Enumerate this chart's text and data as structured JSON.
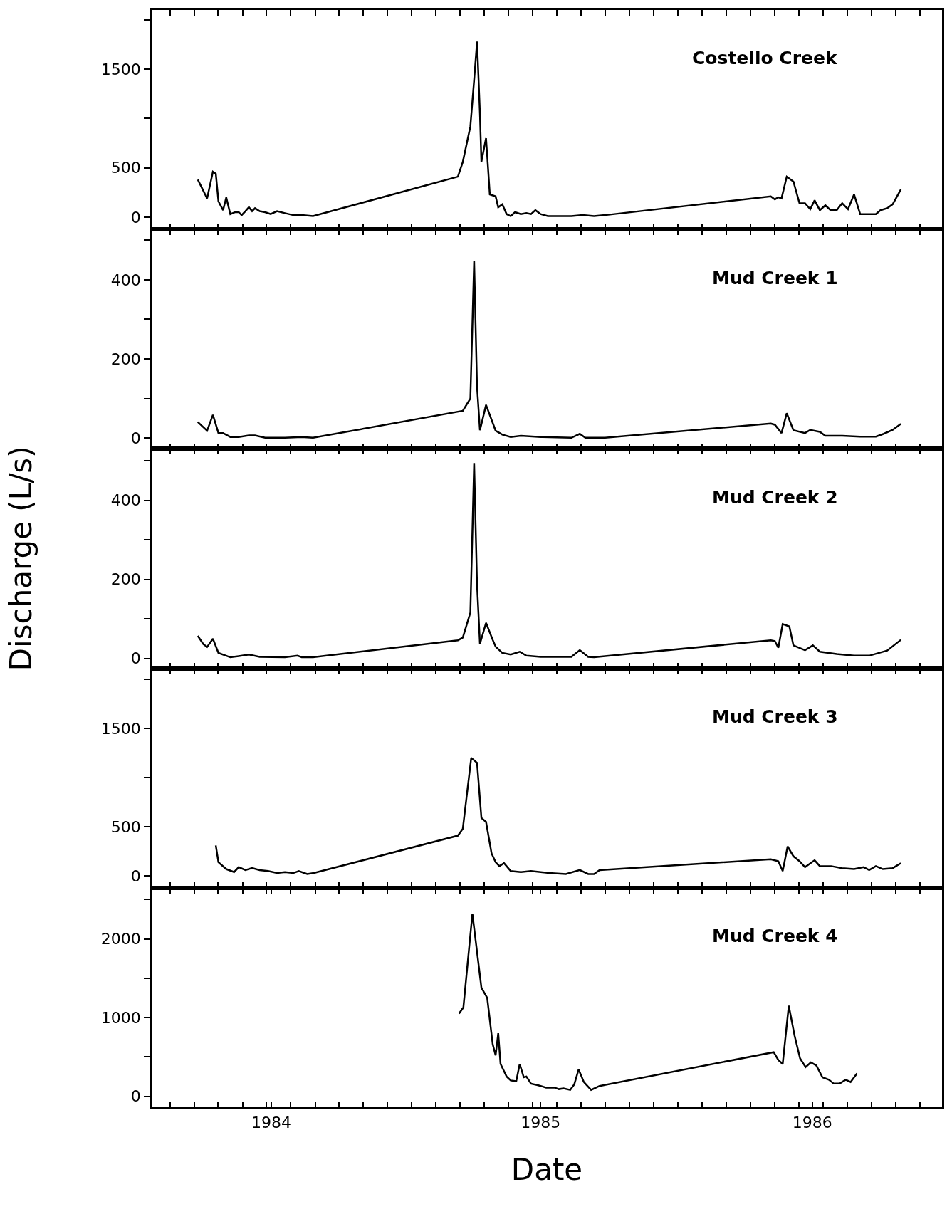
{
  "chart_data": [
    {
      "type": "line",
      "annotations": [
        "Costello Creek"
      ],
      "tick_labels": "y",
      "xlim": [
        1983.854,
        1986.577
      ],
      "ylim": [
        -125,
        2100
      ],
      "xticks": [
        {
          "value": 1983.917,
          "label": null
        },
        {
          "value": 1984.0,
          "label": null
        },
        {
          "value": 1984.083,
          "label": null
        },
        {
          "value": 1984.167,
          "label": null
        },
        {
          "value": 1984.25,
          "label": null
        },
        {
          "value": 1984.333,
          "label": null
        },
        {
          "value": 1984.417,
          "label": null
        },
        {
          "value": 1984.5,
          "label": null
        },
        {
          "value": 1984.583,
          "label": null
        },
        {
          "value": 1984.667,
          "label": null
        },
        {
          "value": 1984.75,
          "label": null
        },
        {
          "value": 1984.833,
          "label": null
        },
        {
          "value": 1984.917,
          "label": null
        },
        {
          "value": 1985.0,
          "label": null
        },
        {
          "value": 1985.083,
          "label": null
        },
        {
          "value": 1985.167,
          "label": null
        },
        {
          "value": 1985.25,
          "label": null
        },
        {
          "value": 1985.333,
          "label": null
        },
        {
          "value": 1985.417,
          "label": null
        },
        {
          "value": 1985.5,
          "label": null
        },
        {
          "value": 1985.583,
          "label": null
        },
        {
          "value": 1985.667,
          "label": null
        },
        {
          "value": 1985.75,
          "label": null
        },
        {
          "value": 1985.833,
          "label": null
        },
        {
          "value": 1985.917,
          "label": null
        },
        {
          "value": 1986.0,
          "label": null
        },
        {
          "value": 1986.083,
          "label": null
        },
        {
          "value": 1986.167,
          "label": null
        },
        {
          "value": 1986.25,
          "label": null
        },
        {
          "value": 1986.333,
          "label": null
        },
        {
          "value": 1986.417,
          "label": null
        },
        {
          "value": 1986.5,
          "label": null
        }
      ],
      "yticks": [
        0,
        500,
        {
          "value": 1000,
          "label": null
        },
        1500,
        {
          "value": 2000,
          "label": null
        }
      ],
      "series": [
        {
          "color": "#000000",
          "x": [
            1984.013,
            1984.045,
            1984.065,
            1984.075,
            1984.084,
            1984.1,
            1984.111,
            1984.125,
            1984.142,
            1984.154,
            1984.164,
            1984.177,
            1984.189,
            1984.2,
            1984.21,
            1984.226,
            1984.245,
            1984.264,
            1984.286,
            1984.313,
            1984.342,
            1984.371,
            1984.41,
            1984.909,
            1984.926,
            1984.952,
            1984.965,
            1984.975,
            1984.985,
            1984.99,
            1985.006,
            1985.019,
            1985.039,
            1985.048,
            1985.062,
            1985.077,
            1985.091,
            1985.106,
            1985.126,
            1985.145,
            1985.161,
            1985.176,
            1985.194,
            1985.219,
            1985.261,
            1985.3,
            1985.339,
            1985.378,
            1985.416,
            1985.987,
            1986.001,
            1986.013,
            1986.024,
            1986.042,
            1986.065,
            1986.086,
            1986.105,
            1986.123,
            1986.138,
            1986.156,
            1986.175,
            1986.193,
            1986.214,
            1986.233,
            1986.253,
            1986.274,
            1986.295,
            1986.326,
            1986.349,
            1986.365,
            1986.388,
            1986.407,
            1986.435
          ],
          "values": [
            380,
            190,
            460,
            440,
            160,
            70,
            200,
            30,
            50,
            50,
            20,
            60,
            100,
            60,
            90,
            60,
            50,
            30,
            60,
            40,
            20,
            20,
            10,
            410,
            560,
            920,
            1390,
            1780,
            1050,
            560,
            800,
            230,
            210,
            100,
            130,
            30,
            10,
            50,
            30,
            40,
            30,
            70,
            30,
            10,
            10,
            10,
            20,
            10,
            20,
            210,
            180,
            200,
            190,
            410,
            360,
            140,
            140,
            80,
            170,
            70,
            120,
            70,
            70,
            140,
            80,
            230,
            30,
            30,
            30,
            70,
            90,
            130,
            280
          ]
        }
      ]
    },
    {
      "type": "line",
      "annotations": [
        "Mud Creek 1"
      ],
      "tick_labels": "y",
      "xlim": [
        1983.854,
        1986.577
      ],
      "ylim": [
        -27,
        527
      ],
      "xticks": [
        {
          "value": 1983.917,
          "label": null
        },
        {
          "value": 1984.0,
          "label": null
        },
        {
          "value": 1984.083,
          "label": null
        },
        {
          "value": 1984.167,
          "label": null
        },
        {
          "value": 1984.25,
          "label": null
        },
        {
          "value": 1984.333,
          "label": null
        },
        {
          "value": 1984.417,
          "label": null
        },
        {
          "value": 1984.5,
          "label": null
        },
        {
          "value": 1984.583,
          "label": null
        },
        {
          "value": 1984.667,
          "label": null
        },
        {
          "value": 1984.75,
          "label": null
        },
        {
          "value": 1984.833,
          "label": null
        },
        {
          "value": 1984.917,
          "label": null
        },
        {
          "value": 1985.0,
          "label": null
        },
        {
          "value": 1985.083,
          "label": null
        },
        {
          "value": 1985.167,
          "label": null
        },
        {
          "value": 1985.25,
          "label": null
        },
        {
          "value": 1985.333,
          "label": null
        },
        {
          "value": 1985.417,
          "label": null
        },
        {
          "value": 1985.5,
          "label": null
        },
        {
          "value": 1985.583,
          "label": null
        },
        {
          "value": 1985.667,
          "label": null
        },
        {
          "value": 1985.75,
          "label": null
        },
        {
          "value": 1985.833,
          "label": null
        },
        {
          "value": 1985.917,
          "label": null
        },
        {
          "value": 1986.0,
          "label": null
        },
        {
          "value": 1986.083,
          "label": null
        },
        {
          "value": 1986.167,
          "label": null
        },
        {
          "value": 1986.25,
          "label": null
        },
        {
          "value": 1986.333,
          "label": null
        },
        {
          "value": 1986.417,
          "label": null
        },
        {
          "value": 1986.5,
          "label": null
        }
      ],
      "yticks": [
        0,
        {
          "value": 100,
          "label": null
        },
        200,
        {
          "value": 300,
          "label": null
        },
        400,
        {
          "value": 500,
          "label": null
        }
      ],
      "series": [
        {
          "color": "#000000",
          "x": [
            1984.013,
            1984.045,
            1984.065,
            1984.084,
            1984.1,
            1984.125,
            1984.154,
            1984.189,
            1984.21,
            1984.245,
            1984.313,
            1984.371,
            1984.41,
            1984.926,
            1984.952,
            1984.965,
            1984.975,
            1984.985,
            1985.006,
            1985.039,
            1985.062,
            1985.091,
            1985.126,
            1985.194,
            1985.3,
            1985.329,
            1985.348,
            1985.416,
            1985.987,
            1986.001,
            1986.024,
            1986.042,
            1986.065,
            1986.105,
            1986.123,
            1986.156,
            1986.175,
            1986.233,
            1986.295,
            1986.349,
            1986.376,
            1986.407,
            1986.435
          ],
          "values": [
            41,
            19,
            59,
            13,
            13,
            3,
            3,
            7,
            7,
            1,
            1,
            3,
            1,
            69,
            100,
            447,
            130,
            20,
            84,
            19,
            9,
            3,
            6,
            3,
            1,
            11,
            1,
            1,
            37,
            34,
            13,
            63,
            20,
            13,
            21,
            16,
            6,
            6,
            4,
            4,
            11,
            21,
            36
          ]
        }
      ]
    },
    {
      "type": "line",
      "annotations": [
        "Mud Creek 2"
      ],
      "ylabel": "Discharge (L/s)",
      "tick_labels": "y",
      "xlim": [
        1983.854,
        1986.577
      ],
      "ylim": [
        -25,
        530
      ],
      "xticks": [
        {
          "value": 1983.917,
          "label": null
        },
        {
          "value": 1984.0,
          "label": null
        },
        {
          "value": 1984.083,
          "label": null
        },
        {
          "value": 1984.167,
          "label": null
        },
        {
          "value": 1984.25,
          "label": null
        },
        {
          "value": 1984.333,
          "label": null
        },
        {
          "value": 1984.417,
          "label": null
        },
        {
          "value": 1984.5,
          "label": null
        },
        {
          "value": 1984.583,
          "label": null
        },
        {
          "value": 1984.667,
          "label": null
        },
        {
          "value": 1984.75,
          "label": null
        },
        {
          "value": 1984.833,
          "label": null
        },
        {
          "value": 1984.917,
          "label": null
        },
        {
          "value": 1985.0,
          "label": null
        },
        {
          "value": 1985.083,
          "label": null
        },
        {
          "value": 1985.167,
          "label": null
        },
        {
          "value": 1985.25,
          "label": null
        },
        {
          "value": 1985.333,
          "label": null
        },
        {
          "value": 1985.417,
          "label": null
        },
        {
          "value": 1985.5,
          "label": null
        },
        {
          "value": 1985.583,
          "label": null
        },
        {
          "value": 1985.667,
          "label": null
        },
        {
          "value": 1985.75,
          "label": null
        },
        {
          "value": 1985.833,
          "label": null
        },
        {
          "value": 1985.917,
          "label": null
        },
        {
          "value": 1986.0,
          "label": null
        },
        {
          "value": 1986.083,
          "label": null
        },
        {
          "value": 1986.167,
          "label": null
        },
        {
          "value": 1986.25,
          "label": null
        },
        {
          "value": 1986.333,
          "label": null
        },
        {
          "value": 1986.417,
          "label": null
        },
        {
          "value": 1986.5,
          "label": null
        }
      ],
      "yticks": [
        0,
        {
          "value": 100,
          "label": null
        },
        200,
        {
          "value": 300,
          "label": null
        },
        400,
        {
          "value": 500,
          "label": null
        }
      ],
      "series": [
        {
          "color": "#000000",
          "x": [
            1984.013,
            1984.032,
            1984.045,
            1984.065,
            1984.084,
            1984.125,
            1984.154,
            1984.189,
            1984.226,
            1984.313,
            1984.357,
            1984.371,
            1984.41,
            1984.909,
            1984.926,
            1984.952,
            1984.965,
            1984.975,
            1984.985,
            1985.006,
            1985.029,
            1985.039,
            1985.062,
            1985.091,
            1985.122,
            1985.145,
            1985.194,
            1985.261,
            1985.3,
            1985.329,
            1985.358,
            1985.378,
            1985.987,
            1986.001,
            1986.013,
            1986.028,
            1986.051,
            1986.065,
            1986.105,
            1986.132,
            1986.156,
            1986.214,
            1986.274,
            1986.326,
            1986.388,
            1986.435
          ],
          "values": [
            57,
            36,
            29,
            50,
            14,
            3,
            6,
            10,
            4,
            3,
            7,
            3,
            3,
            46,
            53,
            116,
            494,
            187,
            37,
            90,
            47,
            30,
            14,
            10,
            17,
            7,
            4,
            4,
            4,
            21,
            4,
            3,
            46,
            44,
            27,
            87,
            81,
            33,
            21,
            33,
            17,
            11,
            7,
            7,
            20,
            47
          ]
        }
      ]
    },
    {
      "type": "line",
      "annotations": [
        "Mud Creek 3"
      ],
      "tick_labels": "y",
      "xlim": [
        1983.854,
        1986.577
      ],
      "ylim": [
        -120,
        2110
      ],
      "xticks": [
        {
          "value": 1983.917,
          "label": null
        },
        {
          "value": 1984.0,
          "label": null
        },
        {
          "value": 1984.083,
          "label": null
        },
        {
          "value": 1984.167,
          "label": null
        },
        {
          "value": 1984.25,
          "label": null
        },
        {
          "value": 1984.333,
          "label": null
        },
        {
          "value": 1984.417,
          "label": null
        },
        {
          "value": 1984.5,
          "label": null
        },
        {
          "value": 1984.583,
          "label": null
        },
        {
          "value": 1984.667,
          "label": null
        },
        {
          "value": 1984.75,
          "label": null
        },
        {
          "value": 1984.833,
          "label": null
        },
        {
          "value": 1984.917,
          "label": null
        },
        {
          "value": 1985.0,
          "label": null
        },
        {
          "value": 1985.083,
          "label": null
        },
        {
          "value": 1985.167,
          "label": null
        },
        {
          "value": 1985.25,
          "label": null
        },
        {
          "value": 1985.333,
          "label": null
        },
        {
          "value": 1985.417,
          "label": null
        },
        {
          "value": 1985.5,
          "label": null
        },
        {
          "value": 1985.583,
          "label": null
        },
        {
          "value": 1985.667,
          "label": null
        },
        {
          "value": 1985.75,
          "label": null
        },
        {
          "value": 1985.833,
          "label": null
        },
        {
          "value": 1985.917,
          "label": null
        },
        {
          "value": 1986.0,
          "label": null
        },
        {
          "value": 1986.083,
          "label": null
        },
        {
          "value": 1986.167,
          "label": null
        },
        {
          "value": 1986.25,
          "label": null
        },
        {
          "value": 1986.333,
          "label": null
        },
        {
          "value": 1986.417,
          "label": null
        },
        {
          "value": 1986.5,
          "label": null
        }
      ],
      "yticks": [
        0,
        500,
        {
          "value": 1000,
          "label": null
        },
        1500,
        {
          "value": 2000,
          "label": null
        }
      ],
      "series": [
        {
          "color": "#000000",
          "x": [
            1984.075,
            1984.084,
            1984.111,
            1984.138,
            1984.154,
            1984.177,
            1984.2,
            1984.226,
            1984.255,
            1984.286,
            1984.313,
            1984.342,
            1984.361,
            1984.39,
            1984.413,
            1984.909,
            1984.926,
            1984.955,
            1984.975,
            1984.99,
            1985.006,
            1985.025,
            1985.039,
            1985.052,
            1985.068,
            1985.091,
            1985.126,
            1985.161,
            1985.223,
            1985.281,
            1985.329,
            1985.358,
            1985.378,
            1985.397,
            1985.987,
            1986.013,
            1986.028,
            1986.045,
            1986.065,
            1986.086,
            1986.105,
            1986.138,
            1986.156,
            1986.195,
            1986.233,
            1986.274,
            1986.307,
            1986.326,
            1986.349,
            1986.373,
            1986.407,
            1986.435
          ],
          "values": [
            310,
            140,
            70,
            40,
            90,
            60,
            80,
            60,
            50,
            30,
            40,
            30,
            50,
            20,
            30,
            410,
            480,
            1200,
            1150,
            590,
            550,
            230,
            140,
            100,
            130,
            50,
            40,
            50,
            30,
            20,
            60,
            20,
            20,
            60,
            170,
            150,
            50,
            300,
            200,
            150,
            90,
            160,
            100,
            100,
            80,
            70,
            90,
            60,
            100,
            70,
            80,
            130
          ]
        }
      ]
    },
    {
      "type": "line",
      "annotations": [
        "Mud Creek 4"
      ],
      "xlabel": "Date",
      "xlim": [
        1983.854,
        1986.577
      ],
      "ylim": [
        -140,
        2650
      ],
      "xticks": [
        {
          "value": 1983.917,
          "label": null
        },
        {
          "value": 1984.0,
          "label": null
        },
        {
          "value": 1984.083,
          "label": null
        },
        {
          "value": 1984.167,
          "label": null
        },
        {
          "value": 1984.25,
          "label": null
        },
        {
          "value": 1984.266,
          "label": "1984"
        },
        {
          "value": 1984.333,
          "label": null
        },
        {
          "value": 1984.417,
          "label": null
        },
        {
          "value": 1984.5,
          "label": null
        },
        {
          "value": 1984.583,
          "label": null
        },
        {
          "value": 1984.667,
          "label": null
        },
        {
          "value": 1984.75,
          "label": null
        },
        {
          "value": 1984.833,
          "label": null
        },
        {
          "value": 1984.917,
          "label": null
        },
        {
          "value": 1985.0,
          "label": null
        },
        {
          "value": 1985.083,
          "label": null
        },
        {
          "value": 1985.167,
          "label": null
        },
        {
          "value": 1985.194,
          "label": "1985"
        },
        {
          "value": 1985.25,
          "label": null
        },
        {
          "value": 1985.333,
          "label": null
        },
        {
          "value": 1985.417,
          "label": null
        },
        {
          "value": 1985.5,
          "label": null
        },
        {
          "value": 1985.583,
          "label": null
        },
        {
          "value": 1985.667,
          "label": null
        },
        {
          "value": 1985.75,
          "label": null
        },
        {
          "value": 1985.833,
          "label": null
        },
        {
          "value": 1985.917,
          "label": null
        },
        {
          "value": 1986.0,
          "label": null
        },
        {
          "value": 1986.083,
          "label": null
        },
        {
          "value": 1986.13,
          "label": "1986"
        },
        {
          "value": 1986.167,
          "label": null
        },
        {
          "value": 1986.25,
          "label": null
        },
        {
          "value": 1986.333,
          "label": null
        },
        {
          "value": 1986.417,
          "label": null
        },
        {
          "value": 1986.5,
          "label": null
        }
      ],
      "yticks": [
        0,
        {
          "value": 500,
          "label": null
        },
        1000,
        {
          "value": 1500,
          "label": null
        },
        2000,
        {
          "value": 2500,
          "label": null
        }
      ],
      "series": [
        {
          "color": "#000000",
          "x": [
            1984.913,
            1984.928,
            1984.959,
            1984.99,
            1985.01,
            1985.029,
            1985.039,
            1985.048,
            1985.056,
            1985.077,
            1985.091,
            1985.11,
            1985.122,
            1985.136,
            1985.145,
            1985.161,
            1985.184,
            1985.213,
            1985.242,
            1985.257,
            1985.273,
            1985.296,
            1985.31,
            1985.325,
            1985.343,
            1985.368,
            1985.397,
            1985.997,
            1986.013,
            1986.028,
            1986.049,
            1986.069,
            1986.088,
            1986.107,
            1986.125,
            1986.144,
            1986.165,
            1986.187,
            1986.204,
            1986.224,
            1986.245,
            1986.262,
            1986.284
          ],
          "values": [
            1050,
            1130,
            2320,
            1380,
            1250,
            660,
            520,
            800,
            410,
            250,
            200,
            190,
            410,
            240,
            250,
            160,
            140,
            110,
            110,
            90,
            100,
            80,
            150,
            340,
            180,
            80,
            130,
            560,
            460,
            410,
            1150,
            770,
            480,
            370,
            430,
            390,
            240,
            210,
            160,
            160,
            210,
            180,
            290
          ]
        }
      ]
    }
  ]
}
